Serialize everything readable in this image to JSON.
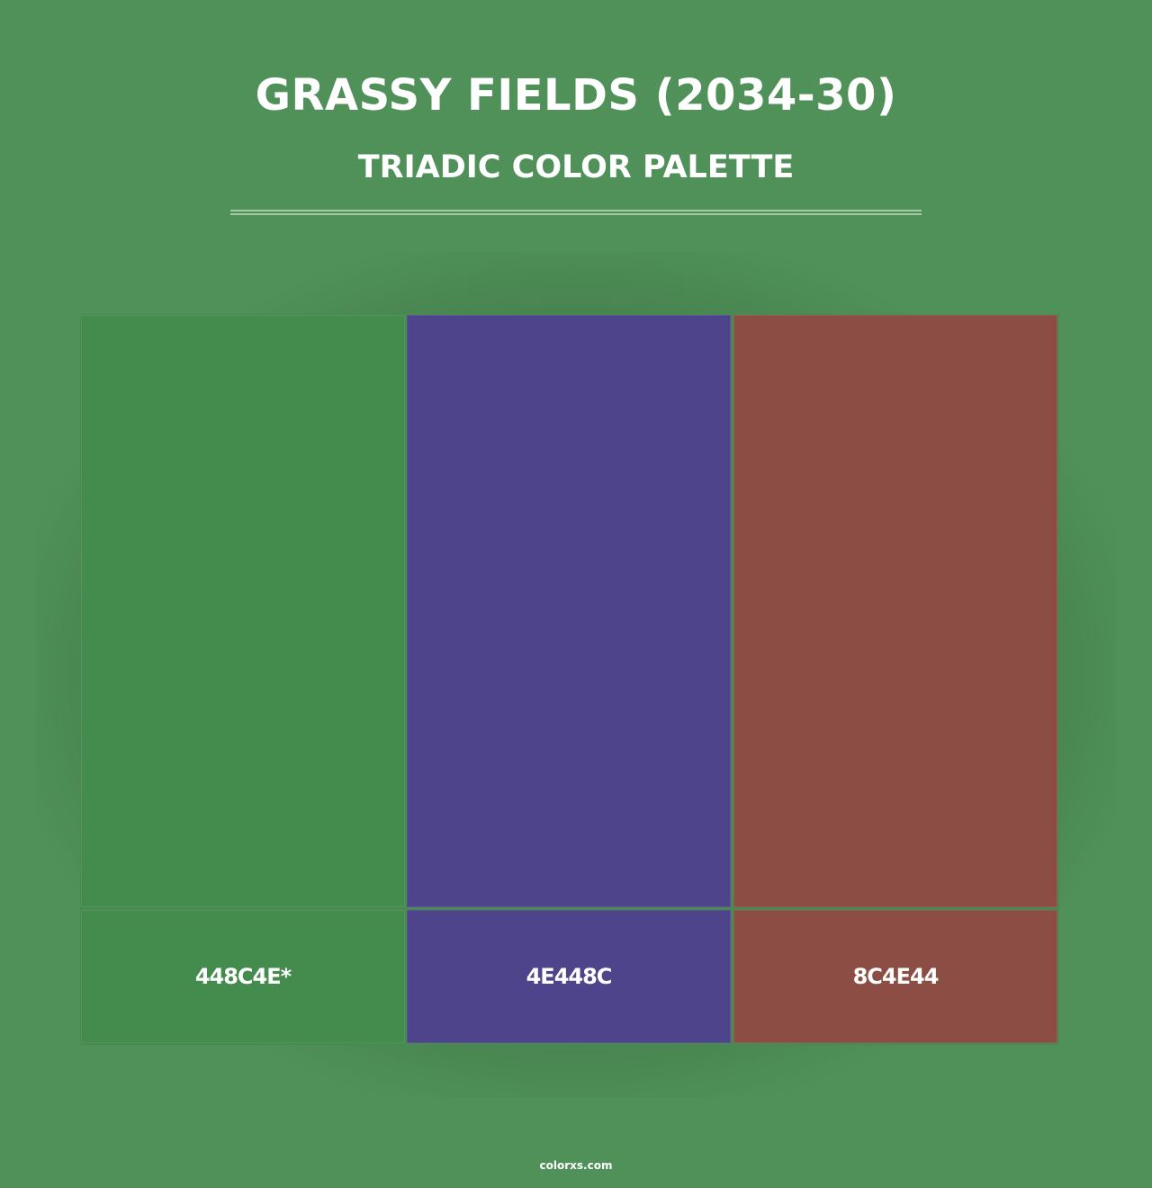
{
  "title": "GRASSY FIELDS (2034-30)",
  "subtitle": "TRIADIC COLOR PALETTE",
  "swatches": [
    {
      "label": "448C4E*",
      "color": "#448C4E"
    },
    {
      "label": "4E448C",
      "color": "#4E448C"
    },
    {
      "label": "8C4E44",
      "color": "#8C4E44"
    }
  ],
  "footer": "colorxs.com"
}
